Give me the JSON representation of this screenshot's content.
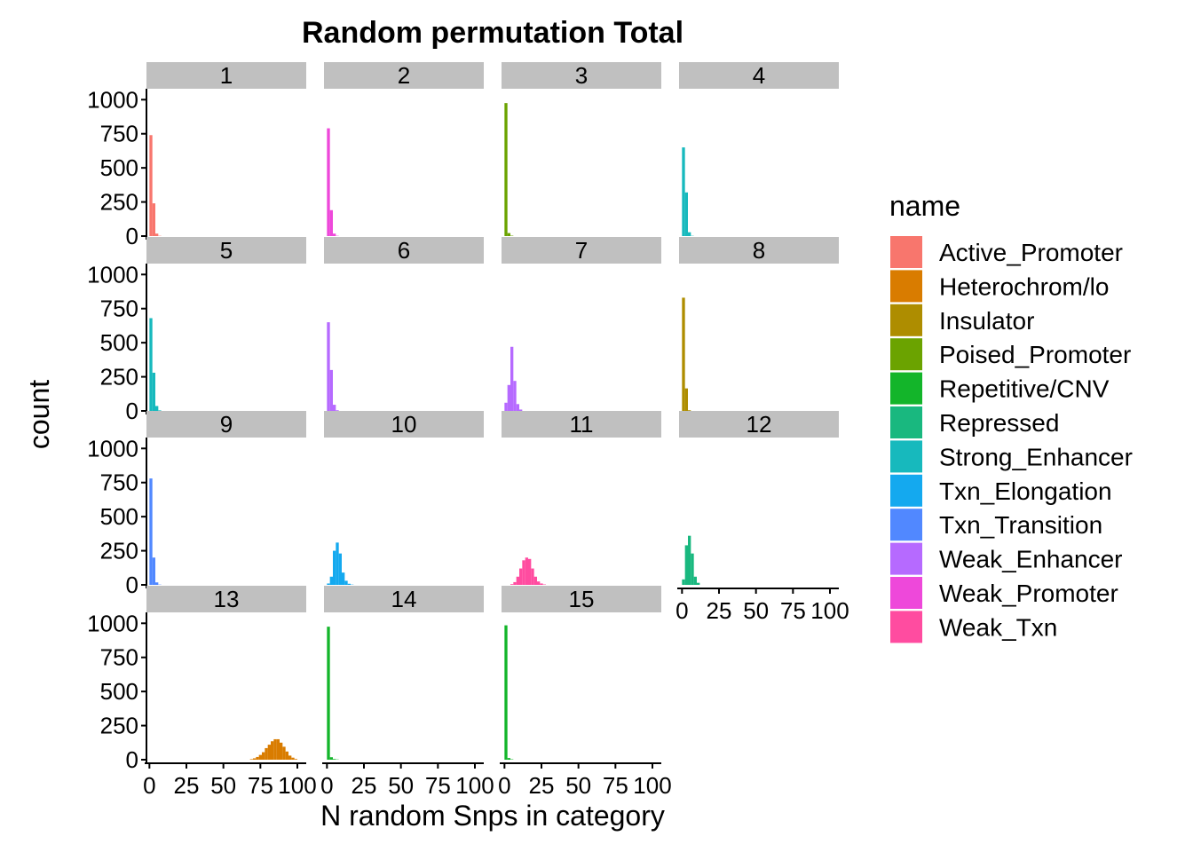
{
  "chart_data": {
    "type": "bar",
    "title": "Random permutation Total",
    "xlabel": "N random Snps in category",
    "ylabel": "count",
    "xlim": [
      -2,
      106
    ],
    "ylim": [
      0,
      1080
    ],
    "x_ticks": [
      0,
      25,
      50,
      75,
      100
    ],
    "x_tick_labels": [
      "0",
      "25",
      "50",
      "75",
      "100"
    ],
    "y_ticks": [
      0,
      250,
      500,
      750,
      1000
    ],
    "y_tick_labels": [
      "0",
      "250",
      "500",
      "750",
      "1000"
    ],
    "bin_width": 2,
    "grid": false,
    "legend": {
      "title": "name",
      "position": "right",
      "entries": [
        {
          "label": "Active_Promoter",
          "color": "#F8766D"
        },
        {
          "label": "Heterochrom/lo",
          "color": "#D97C00"
        },
        {
          "label": "Insulator",
          "color": "#AE8D00"
        },
        {
          "label": "Poised_Promoter",
          "color": "#6BA300"
        },
        {
          "label": "Repetitive/CNV",
          "color": "#13B52A"
        },
        {
          "label": "Repressed",
          "color": "#19B87F"
        },
        {
          "label": "Strong_Enhancer",
          "color": "#17B9BD"
        },
        {
          "label": "Txn_Elongation",
          "color": "#14A9EF"
        },
        {
          "label": "Txn_Transition",
          "color": "#5188FF"
        },
        {
          "label": "Weak_Enhancer",
          "color": "#B66AFF"
        },
        {
          "label": "Weak_Promoter",
          "color": "#EE48DA"
        },
        {
          "label": "Weak_Txn",
          "color": "#FF4CA0"
        }
      ]
    },
    "panels": [
      {
        "label": "1",
        "series": "Active_Promoter",
        "bins": [
          [
            0,
            740
          ],
          [
            2,
            240
          ],
          [
            4,
            18
          ],
          [
            6,
            2
          ]
        ]
      },
      {
        "label": "2",
        "series": "Weak_Promoter",
        "bins": [
          [
            0,
            790
          ],
          [
            2,
            190
          ],
          [
            4,
            18
          ],
          [
            6,
            2
          ]
        ]
      },
      {
        "label": "3",
        "series": "Poised_Promoter",
        "bins": [
          [
            0,
            975
          ],
          [
            2,
            22
          ],
          [
            4,
            3
          ]
        ]
      },
      {
        "label": "4",
        "series": "Strong_Enhancer",
        "bins": [
          [
            0,
            650
          ],
          [
            2,
            320
          ],
          [
            4,
            28
          ],
          [
            6,
            2
          ]
        ]
      },
      {
        "label": "5",
        "series": "Strong_Enhancer",
        "bins": [
          [
            0,
            680
          ],
          [
            2,
            280
          ],
          [
            4,
            36
          ],
          [
            6,
            4
          ]
        ]
      },
      {
        "label": "6",
        "series": "Weak_Enhancer",
        "bins": [
          [
            0,
            650
          ],
          [
            2,
            300
          ],
          [
            4,
            45
          ],
          [
            6,
            5
          ]
        ]
      },
      {
        "label": "7",
        "series": "Weak_Enhancer",
        "bins": [
          [
            0,
            60
          ],
          [
            2,
            190
          ],
          [
            4,
            470
          ],
          [
            6,
            220
          ],
          [
            8,
            50
          ],
          [
            10,
            10
          ]
        ]
      },
      {
        "label": "8",
        "series": "Insulator",
        "bins": [
          [
            0,
            830
          ],
          [
            2,
            165
          ],
          [
            4,
            5
          ]
        ]
      },
      {
        "label": "9",
        "series": "Txn_Transition",
        "bins": [
          [
            0,
            780
          ],
          [
            2,
            200
          ],
          [
            4,
            18
          ],
          [
            6,
            2
          ]
        ]
      },
      {
        "label": "10",
        "series": "Txn_Elongation",
        "bins": [
          [
            0,
            10
          ],
          [
            2,
            60
          ],
          [
            4,
            250
          ],
          [
            6,
            310
          ],
          [
            8,
            230
          ],
          [
            10,
            90
          ],
          [
            12,
            30
          ],
          [
            14,
            8
          ],
          [
            16,
            2
          ]
        ]
      },
      {
        "label": "11",
        "series": "Weak_Txn",
        "bins": [
          [
            4,
            5
          ],
          [
            6,
            20
          ],
          [
            8,
            60
          ],
          [
            10,
            120
          ],
          [
            12,
            180
          ],
          [
            14,
            200
          ],
          [
            16,
            190
          ],
          [
            18,
            120
          ],
          [
            20,
            60
          ],
          [
            22,
            25
          ],
          [
            24,
            10
          ],
          [
            26,
            3
          ]
        ]
      },
      {
        "label": "12",
        "series": "Repressed",
        "bins": [
          [
            0,
            40
          ],
          [
            2,
            290
          ],
          [
            4,
            360
          ],
          [
            6,
            230
          ],
          [
            8,
            60
          ],
          [
            10,
            15
          ]
        ]
      },
      {
        "label": "13",
        "series": "Heterochrom/lo",
        "bins": [
          [
            68,
            4
          ],
          [
            70,
            10
          ],
          [
            72,
            20
          ],
          [
            74,
            35
          ],
          [
            76,
            55
          ],
          [
            78,
            85
          ],
          [
            80,
            110
          ],
          [
            82,
            135
          ],
          [
            84,
            150
          ],
          [
            86,
            150
          ],
          [
            88,
            125
          ],
          [
            90,
            95
          ],
          [
            92,
            60
          ],
          [
            94,
            30
          ],
          [
            96,
            15
          ],
          [
            98,
            5
          ]
        ]
      },
      {
        "label": "14",
        "series": "Repetitive/CNV",
        "bins": [
          [
            0,
            975
          ],
          [
            2,
            18
          ],
          [
            4,
            5
          ],
          [
            6,
            2
          ]
        ]
      },
      {
        "label": "15",
        "series": "Repetitive/CNV",
        "bins": [
          [
            0,
            985
          ],
          [
            2,
            12
          ],
          [
            4,
            3
          ]
        ]
      }
    ]
  }
}
